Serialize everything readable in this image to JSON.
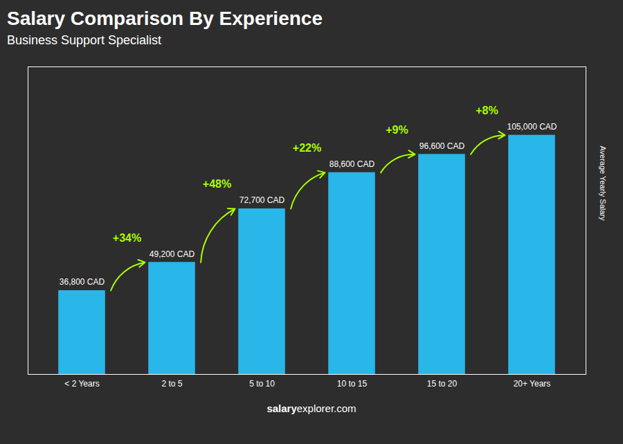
{
  "chart_data": {
    "type": "bar",
    "title": "Salary Comparison By Experience",
    "subtitle": "Business Support Specialist",
    "ylabel": "Average Yearly Salary",
    "footer": [
      "salary",
      "explorer.com"
    ],
    "categories": [
      "< 2 Years",
      "2 to 5",
      "5 to 10",
      "10 to 15",
      "15 to 20",
      "20+ Years"
    ],
    "values": [
      36800,
      49200,
      72700,
      88600,
      96600,
      105000
    ],
    "value_labels": [
      "36,800 CAD",
      "49,200 CAD",
      "72,700 CAD",
      "88,600 CAD",
      "96,600 CAD",
      "105,000 CAD"
    ],
    "data_labels": true,
    "color": "#29b6e8",
    "ylim": [
      0,
      135000
    ],
    "tick_labels": "x",
    "grid": false,
    "annotations": [
      {
        "text": "+34%",
        "from": "< 2 Years",
        "to": "2 to 5",
        "color": "#aaff00"
      },
      {
        "text": "+48%",
        "from": "2 to 5",
        "to": "5 to 10",
        "color": "#aaff00"
      },
      {
        "text": "+22%",
        "from": "5 to 10",
        "to": "10 to 15",
        "color": "#aaff00"
      },
      {
        "text": "+9%",
        "from": "10 to 15",
        "to": "15 to 20",
        "color": "#aaff00"
      },
      {
        "text": "+8%",
        "from": "15 to 20",
        "to": "20+ Years",
        "color": "#aaff00"
      }
    ]
  }
}
